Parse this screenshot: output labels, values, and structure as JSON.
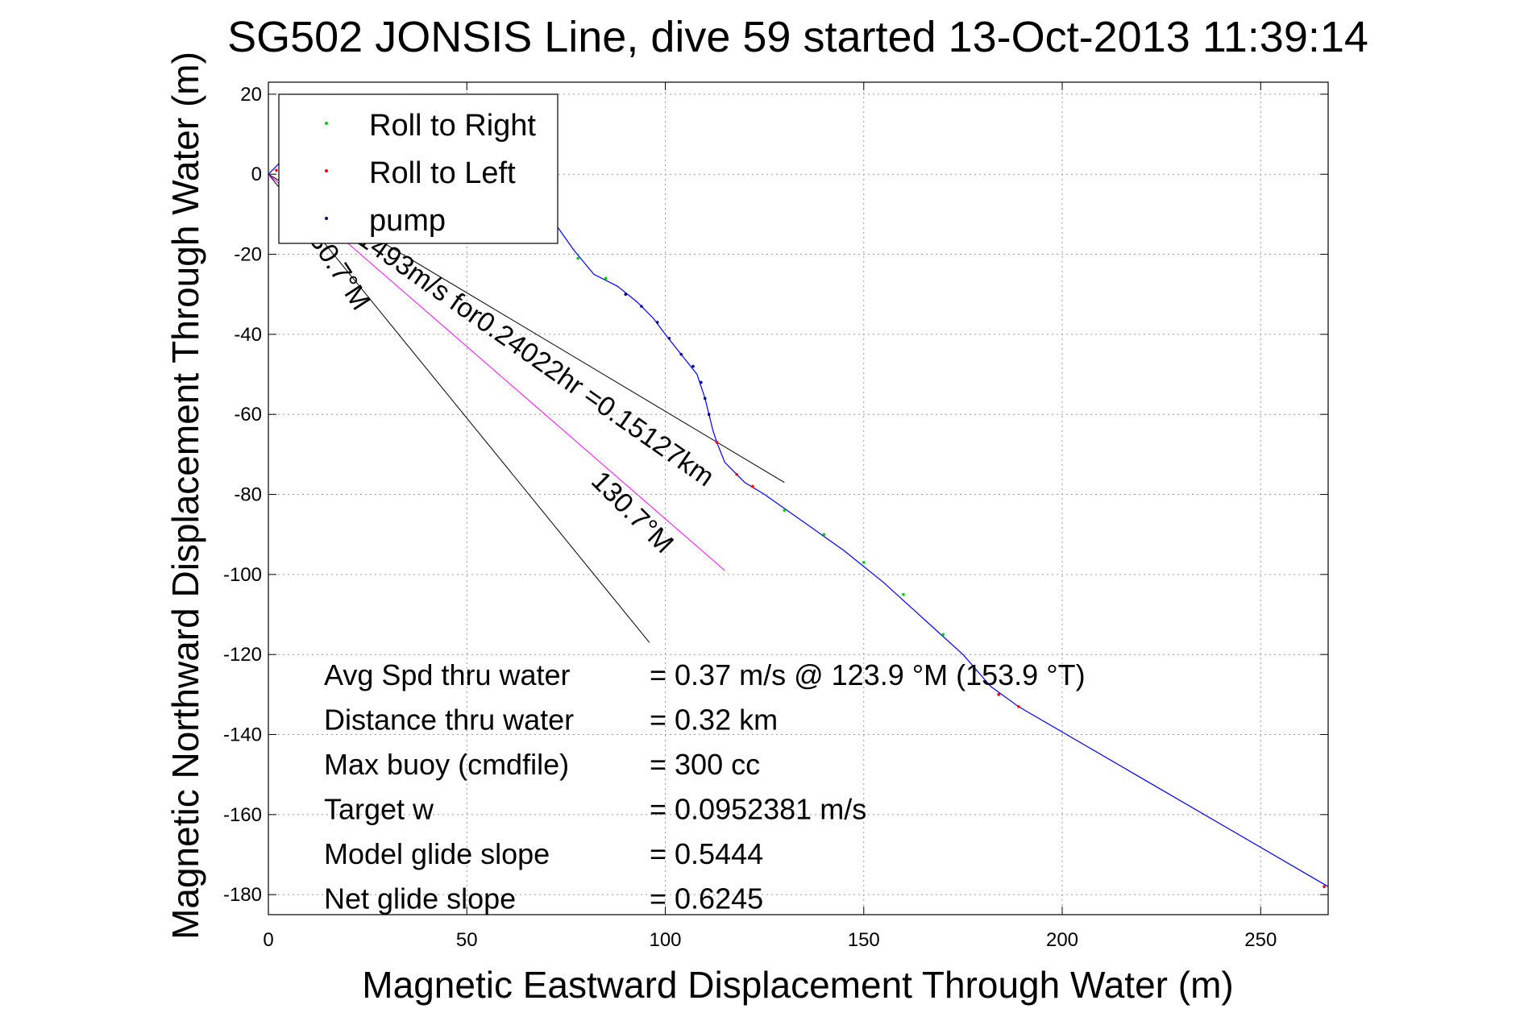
{
  "chart_data": {
    "type": "line",
    "title": "SG502 JONSIS Line, dive 59 started 13-Oct-2013 11:39:14",
    "xlabel": "Magnetic Eastward Displacement Through Water (m)",
    "ylabel": "Magnetic Northward Displacement Through Water (m)",
    "xlim": [
      0,
      267
    ],
    "ylim": [
      -185,
      23
    ],
    "x_ticks": [
      0,
      50,
      100,
      150,
      200,
      250
    ],
    "y_ticks": [
      20,
      0,
      -20,
      -40,
      -60,
      -80,
      -100,
      -120,
      -140,
      -160,
      -180
    ],
    "grid": true,
    "legend": {
      "position": "top-left",
      "entries": [
        {
          "label": "Roll to Right",
          "color": "#00cc00"
        },
        {
          "label": "Roll to Left",
          "color": "#ff0000"
        },
        {
          "label": "pump",
          "color": "#000080"
        }
      ]
    },
    "track": {
      "color": "#0000ff",
      "x": [
        0,
        3,
        8,
        15,
        25,
        35,
        45,
        55,
        65,
        72,
        77,
        82,
        88,
        93,
        97,
        100,
        104,
        108,
        110,
        111,
        112,
        113,
        115,
        120,
        125,
        135,
        145,
        155,
        165,
        175,
        182,
        189,
        267
      ],
      "y": [
        0,
        3,
        5,
        6,
        6,
        4,
        2,
        -1,
        -5,
        -12,
        -19,
        -25,
        -28,
        -32,
        -36,
        -40,
        -45,
        -50,
        -56,
        -60,
        -64,
        -67,
        -72,
        -77,
        -80,
        -87,
        -94,
        -102,
        -111,
        -120,
        -128,
        -133,
        -178
      ]
    },
    "great_circle": {
      "color": "#ff00ff",
      "x": [
        0,
        115
      ],
      "y": [
        0,
        -99
      ]
    },
    "reference_lines": [
      {
        "x": [
          0,
          130
        ],
        "y": [
          0,
          -77
        ]
      },
      {
        "x": [
          0,
          96
        ],
        "y": [
          0,
          -117
        ]
      }
    ],
    "markers": {
      "roll_right": {
        "color": "#00cc00",
        "x": [
          60,
          70,
          78,
          85,
          130,
          140,
          150,
          160,
          170,
          178
        ],
        "y": [
          -3,
          -9,
          -21,
          -26,
          -84,
          -90,
          -97,
          -105,
          -115,
          -124
        ]
      },
      "roll_left": {
        "color": "#ff0000",
        "x": [
          2,
          113,
          118,
          122,
          184,
          189,
          266
        ],
        "y": [
          1,
          -67,
          -75,
          -78,
          -130,
          -133,
          -178
        ]
      },
      "pump": {
        "color": "#000080",
        "x": [
          90,
          94,
          98,
          101,
          104,
          107,
          109,
          110,
          111
        ],
        "y": [
          -30,
          -33,
          -37,
          -41,
          -45,
          -48,
          -52,
          -56,
          -60
        ]
      }
    },
    "annotations": [
      {
        "text": "130.7°M",
        "x": 8,
        "y": -13,
        "angle": 57
      },
      {
        "text": "1493m/s for0.24022hr =0.15127km",
        "x": 22,
        "y": -17,
        "angle": 35
      },
      {
        "text": "130.7°M",
        "x": 81,
        "y": -77,
        "angle": 45
      }
    ],
    "stats": [
      {
        "label": "Avg Spd thru water",
        "value": "=  0.37 m/s @ 123.9 °M (153.9 °T)"
      },
      {
        "label": "Distance thru water",
        "value": "=  0.32 km"
      },
      {
        "label": "Max buoy (cmdfile)",
        "value": "= 300 cc"
      },
      {
        "label": "Target w",
        "value": "= 0.0952381 m/s"
      },
      {
        "label": "Model glide slope",
        "value": "= 0.5444"
      },
      {
        "label": "Net glide slope",
        "value": "= 0.6245"
      }
    ]
  }
}
